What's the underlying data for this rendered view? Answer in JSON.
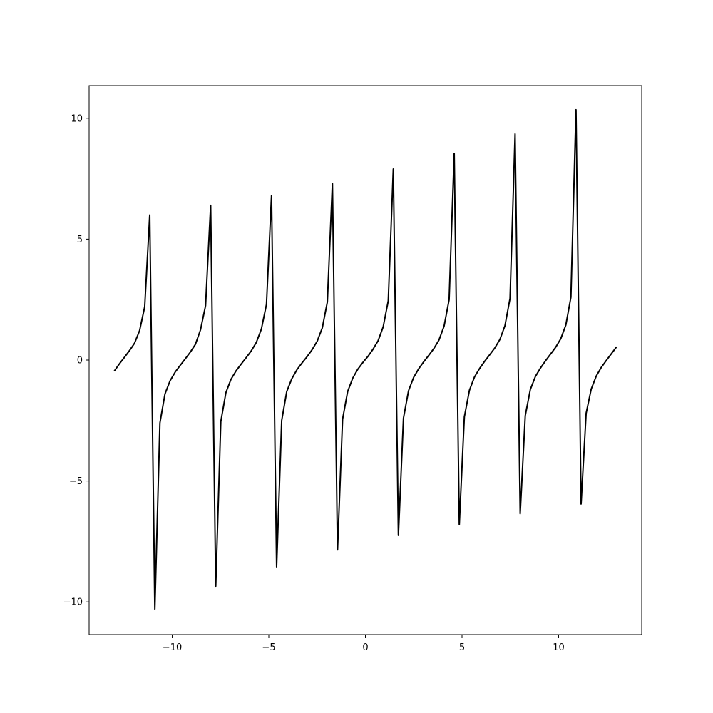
{
  "chart_data": {
    "type": "line",
    "title": "",
    "xlabel": "",
    "ylabel": "",
    "xlim": [
      -14.3,
      14.3
    ],
    "ylim": [
      -11.35,
      11.35
    ],
    "grid": false,
    "x_ticks": [
      -10,
      -5,
      0,
      5,
      10
    ],
    "x_tick_labels": [
      "−10",
      "−5",
      "0",
      "5",
      "10"
    ],
    "y_ticks": [
      -10,
      -5,
      0,
      5,
      10
    ],
    "y_tick_labels": [
      "−10",
      "−5",
      "0",
      "5",
      "10"
    ],
    "series": [
      {
        "color": "#000000",
        "x": [
          -13.0,
          -12.737,
          -12.475,
          -12.212,
          -11.949,
          -11.687,
          -11.424,
          -11.162,
          -10.899,
          -10.636,
          -10.374,
          -10.111,
          -9.848,
          -9.586,
          -9.323,
          -9.061,
          -8.798,
          -8.535,
          -8.273,
          -8.01,
          -7.747,
          -7.485,
          -7.222,
          -6.96,
          -6.697,
          -6.434,
          -6.172,
          -5.909,
          -5.646,
          -5.384,
          -5.121,
          -4.859,
          -4.596,
          -4.333,
          -4.071,
          -3.808,
          -3.545,
          -3.283,
          -3.02,
          -2.758,
          -2.495,
          -2.232,
          -1.97,
          -1.707,
          -1.444,
          -1.182,
          -0.919,
          -0.657,
          -0.394,
          -0.131,
          0.131,
          0.394,
          0.657,
          0.919,
          1.182,
          1.444,
          1.707,
          1.97,
          2.232,
          2.495,
          2.758,
          3.02,
          3.283,
          3.545,
          3.808,
          4.071,
          4.333,
          4.596,
          4.859,
          5.121,
          5.384,
          5.646,
          5.909,
          6.172,
          6.434,
          6.697,
          6.96,
          7.222,
          7.485,
          7.747,
          8.01,
          8.273,
          8.535,
          8.798,
          9.061,
          9.323,
          9.586,
          9.848,
          10.111,
          10.374,
          10.636,
          10.899,
          11.162,
          11.424,
          11.687,
          11.949,
          12.212,
          12.475,
          12.737,
          13.0
        ],
        "y": [
          -0.46,
          -0.16,
          0.11,
          0.39,
          0.7,
          1.22,
          2.2,
          6.0,
          -10.3,
          -2.6,
          -1.4,
          -0.86,
          -0.5,
          -0.22,
          0.05,
          0.33,
          0.65,
          1.25,
          2.25,
          6.4,
          -9.35,
          -2.55,
          -1.35,
          -0.8,
          -0.45,
          -0.17,
          0.1,
          0.38,
          0.73,
          1.28,
          2.3,
          6.8,
          -8.55,
          -2.5,
          -1.3,
          -0.77,
          -0.4,
          -0.12,
          0.14,
          0.43,
          0.78,
          1.33,
          2.4,
          7.3,
          -7.85,
          -2.45,
          -1.3,
          -0.75,
          -0.38,
          -0.1,
          0.15,
          0.45,
          0.8,
          1.37,
          2.45,
          7.9,
          -7.25,
          -2.4,
          -1.27,
          -0.72,
          -0.36,
          -0.07,
          0.2,
          0.48,
          0.83,
          1.4,
          2.5,
          8.55,
          -6.8,
          -2.35,
          -1.25,
          -0.7,
          -0.35,
          -0.05,
          0.22,
          0.5,
          0.85,
          1.42,
          2.55,
          9.35,
          -6.35,
          -2.3,
          -1.22,
          -0.68,
          -0.33,
          -0.03,
          0.25,
          0.53,
          0.88,
          1.45,
          2.6,
          10.35,
          -5.95,
          -2.2,
          -1.2,
          -0.66,
          -0.3,
          -0.01,
          0.27,
          0.55
        ]
      }
    ]
  }
}
